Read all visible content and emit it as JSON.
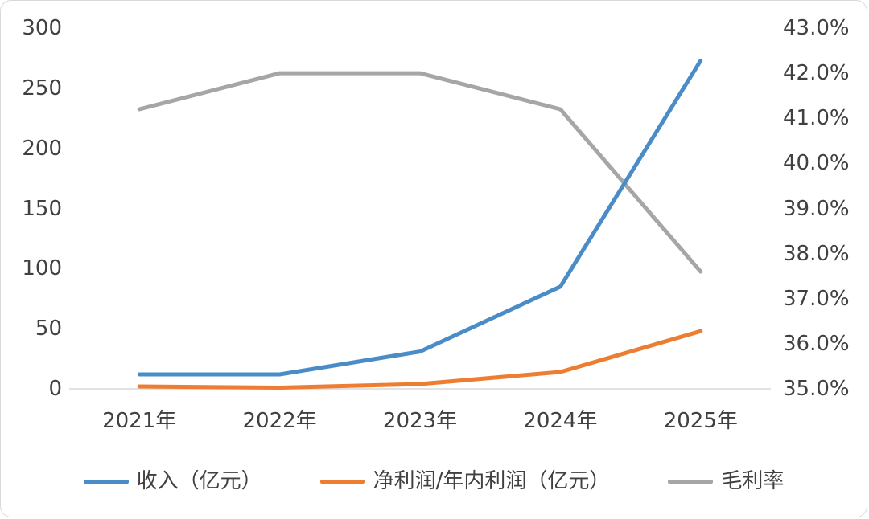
{
  "chart_data": {
    "type": "line",
    "title": "",
    "categories": [
      "2021年",
      "2022年",
      "2023年",
      "2024年",
      "2025年"
    ],
    "series": [
      {
        "name": "收入（亿元）",
        "axis": "left",
        "color": "#4a8cc7",
        "values": [
          12,
          12,
          31,
          85,
          273
        ]
      },
      {
        "name": "净利润/年内利润（亿元）",
        "axis": "left",
        "color": "#ed7d31",
        "values": [
          2,
          1,
          4,
          14,
          48
        ]
      },
      {
        "name": "毛利率",
        "axis": "right",
        "color": "#a6a6a6",
        "values": [
          41.2,
          42.0,
          42.0,
          41.2,
          37.6
        ]
      }
    ],
    "left_axis": {
      "min": 0,
      "max": 300,
      "step": 50,
      "tick_labels": [
        "0",
        "50",
        "100",
        "150",
        "200",
        "250",
        "300"
      ]
    },
    "right_axis": {
      "min": 35,
      "max": 43,
      "step": 1,
      "tick_labels": [
        "35.0%",
        "36.0%",
        "37.0%",
        "38.0%",
        "39.0%",
        "40.0%",
        "41.0%",
        "42.0%",
        "43.0%"
      ]
    },
    "legend": {
      "position": "bottom",
      "items": [
        "收入（亿元）",
        "净利润/年内利润（亿元）",
        "毛利率"
      ]
    },
    "grid": false,
    "axis_line_color": "#d9d9d9",
    "text_color": "#404040"
  }
}
